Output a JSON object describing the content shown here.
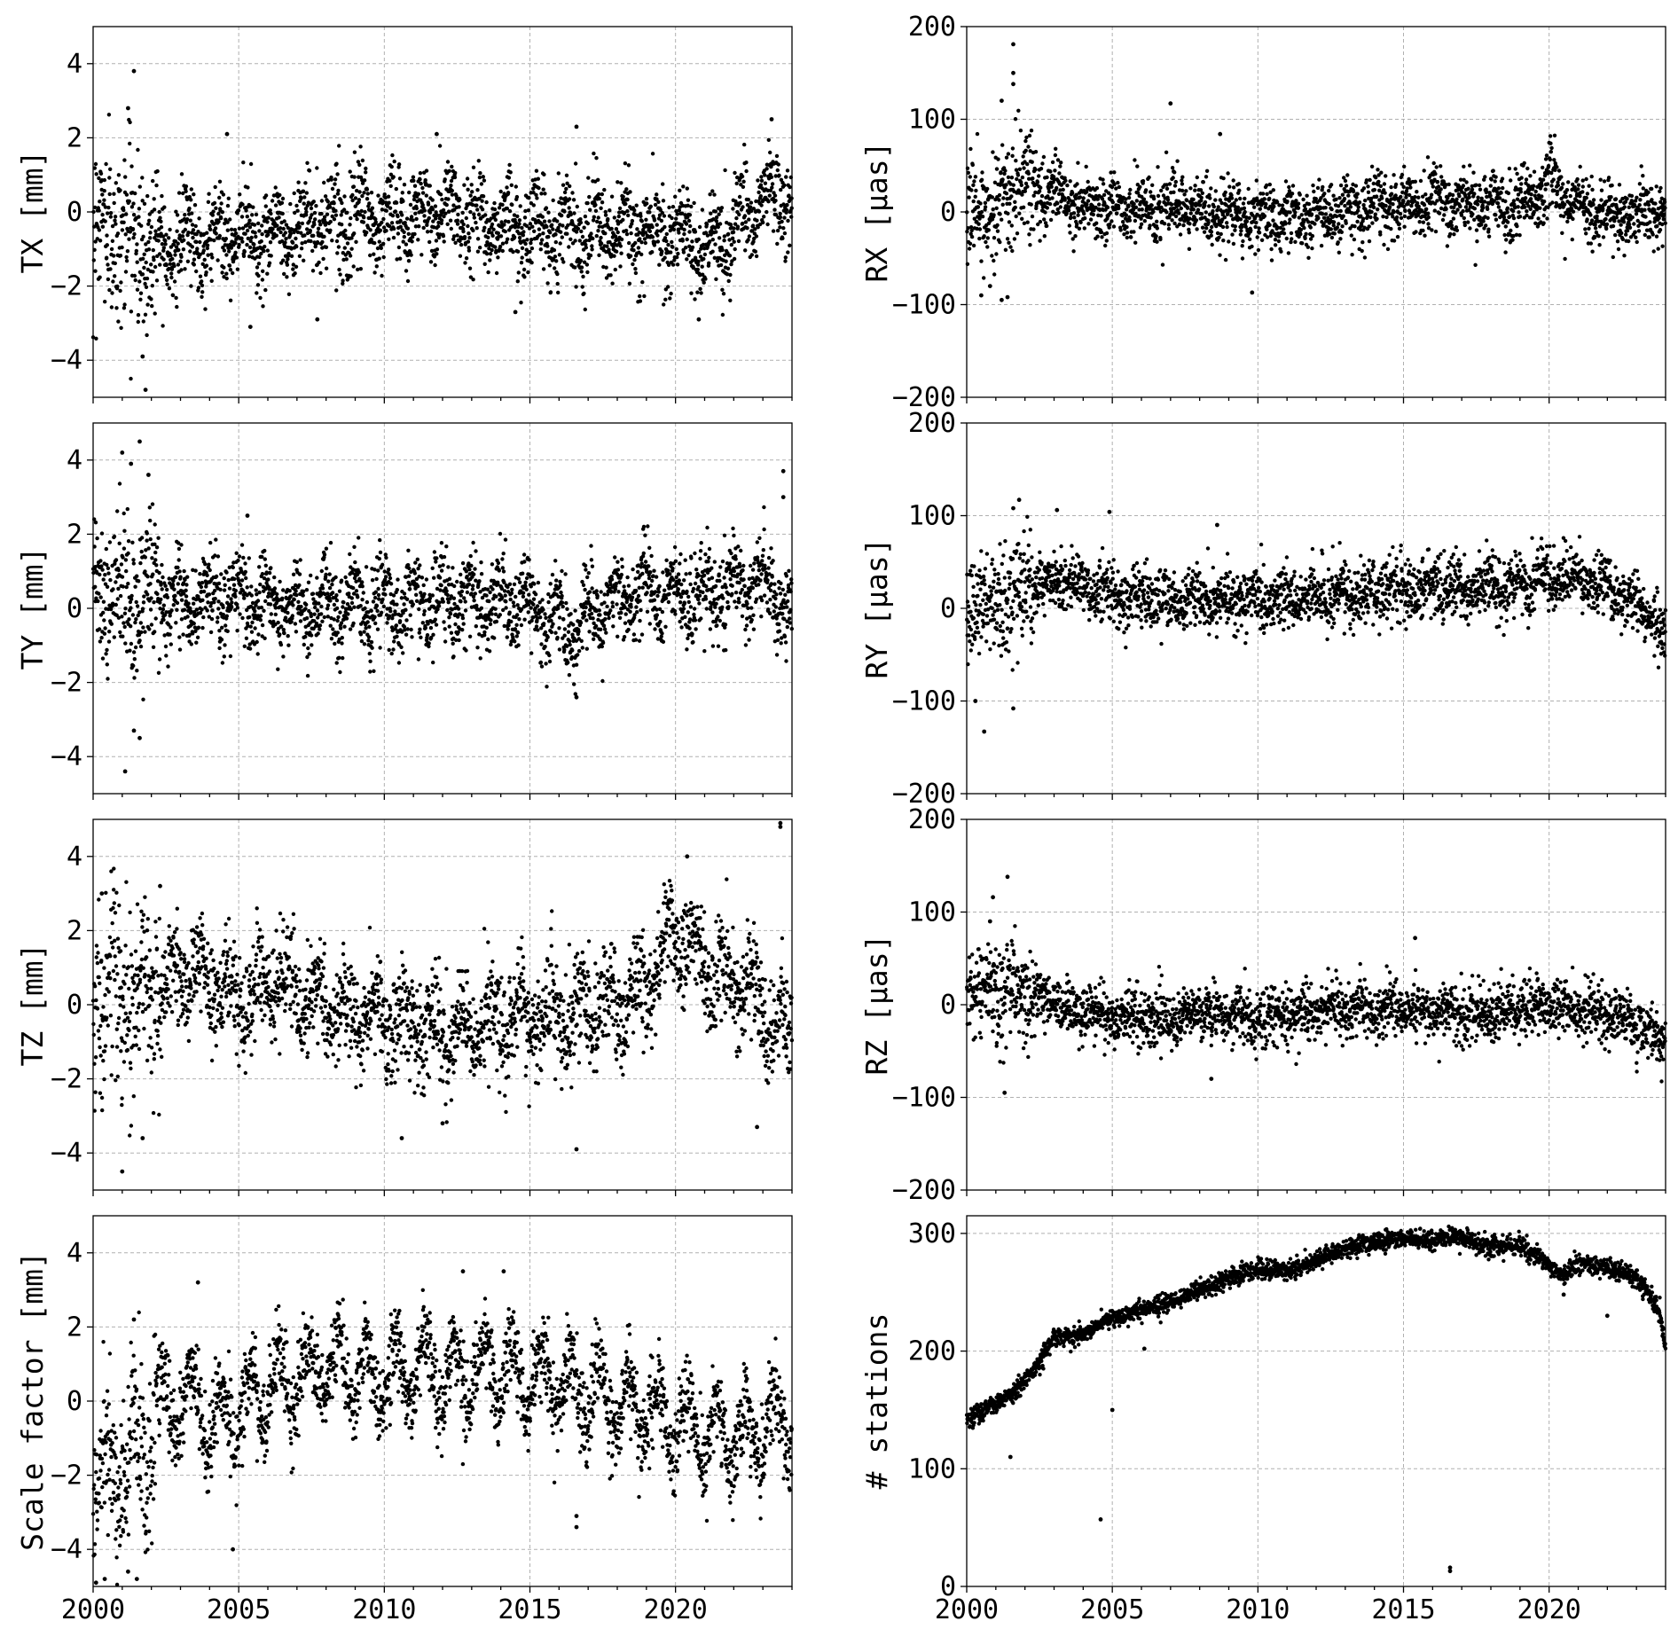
{
  "figure": {
    "x_tick_labels": [
      "2000",
      "2005",
      "2010",
      "2015",
      "2020"
    ]
  },
  "colors": {
    "marker": "#000000",
    "grid": "#b0b0b0",
    "axes": "#000000",
    "background": "#ffffff"
  },
  "chart_data": [
    {
      "id": "tx",
      "type": "scatter",
      "ylabel": "TX [mm]",
      "xlim": [
        2000,
        2024
      ],
      "ylim": [
        -5,
        5
      ],
      "x_ticks": [
        2000,
        2005,
        2010,
        2015,
        2020
      ],
      "y_ticks": [
        -4,
        -2,
        0,
        2,
        4
      ],
      "y_tick_labels": [
        "−4",
        "−2",
        "0",
        "2",
        "4"
      ],
      "grid": true,
      "x_tick_labels_visible": false,
      "trend": [
        [
          2000,
          -0.4
        ],
        [
          2001,
          -0.5
        ],
        [
          2002,
          -0.9
        ],
        [
          2003,
          -0.8
        ],
        [
          2004,
          -0.7
        ],
        [
          2005,
          -0.6
        ],
        [
          2006,
          -0.6
        ],
        [
          2007,
          -0.4
        ],
        [
          2008,
          -0.2
        ],
        [
          2009,
          -0.2
        ],
        [
          2010,
          -0.2
        ],
        [
          2011,
          -0.1
        ],
        [
          2012,
          0.0
        ],
        [
          2013,
          -0.1
        ],
        [
          2014,
          -0.3
        ],
        [
          2015,
          -0.4
        ],
        [
          2016,
          -0.4
        ],
        [
          2017,
          -0.4
        ],
        [
          2018,
          -0.6
        ],
        [
          2019,
          -0.5
        ],
        [
          2020,
          -0.5
        ],
        [
          2021,
          -1.0
        ],
        [
          2022,
          -0.5
        ],
        [
          2023,
          0.3
        ],
        [
          2024,
          0.4
        ]
      ],
      "noise_sd": 0.6,
      "annual_amp": 0.5,
      "point_count": 2400,
      "outliers": [
        [
          2001.4,
          3.8
        ],
        [
          2001.8,
          -4.8
        ],
        [
          2001.2,
          2.8
        ],
        [
          2001.7,
          -3.9
        ],
        [
          2004.6,
          2.1
        ],
        [
          2005.4,
          -3.1
        ],
        [
          2011.8,
          2.1
        ],
        [
          2014.5,
          -2.7
        ],
        [
          2016.6,
          2.3
        ],
        [
          2020.8,
          -2.9
        ],
        [
          2023.3,
          2.5
        ],
        [
          2007.7,
          -2.9
        ]
      ]
    },
    {
      "id": "rx",
      "type": "scatter",
      "ylabel": "RX [µas]",
      "xlim": [
        2000,
        2024
      ],
      "ylim": [
        -200,
        200
      ],
      "x_ticks": [
        2000,
        2005,
        2010,
        2015,
        2020
      ],
      "y_ticks": [
        -200,
        -100,
        0,
        100,
        200
      ],
      "y_tick_labels": [
        "−200",
        "−100",
        "0",
        "100",
        "200"
      ],
      "grid": true,
      "x_tick_labels_visible": false,
      "trend": [
        [
          2000,
          -10
        ],
        [
          2001,
          10
        ],
        [
          2002,
          30
        ],
        [
          2003,
          20
        ],
        [
          2004,
          5
        ],
        [
          2006,
          5
        ],
        [
          2008,
          0
        ],
        [
          2010,
          -5
        ],
        [
          2012,
          -5
        ],
        [
          2014,
          5
        ],
        [
          2016,
          10
        ],
        [
          2018,
          5
        ],
        [
          2019.5,
          10
        ],
        [
          2020,
          40
        ],
        [
          2020.6,
          10
        ],
        [
          2022,
          0
        ],
        [
          2024,
          -5
        ]
      ],
      "noise_sd": 17,
      "annual_amp": 8,
      "point_count": 2400,
      "outliers": [
        [
          2001.6,
          181
        ],
        [
          2001.6,
          150
        ],
        [
          2001.6,
          138
        ],
        [
          2001.2,
          120
        ],
        [
          2007.0,
          117
        ],
        [
          2008.7,
          84
        ],
        [
          2001.2,
          -95
        ],
        [
          2001.4,
          -92
        ],
        [
          2009.8,
          -87
        ],
        [
          2000.5,
          -90
        ],
        [
          2000.8,
          -80
        ]
      ]
    },
    {
      "id": "ty",
      "type": "scatter",
      "ylabel": "TY [mm]",
      "xlim": [
        2000,
        2024
      ],
      "ylim": [
        -5,
        5
      ],
      "x_ticks": [
        2000,
        2005,
        2010,
        2015,
        2020
      ],
      "y_ticks": [
        -4,
        -2,
        0,
        2,
        4
      ],
      "y_tick_labels": [
        "−4",
        "−2",
        "0",
        "2",
        "4"
      ],
      "grid": true,
      "x_tick_labels_visible": false,
      "trend": [
        [
          2000,
          0.3
        ],
        [
          2001,
          0.2
        ],
        [
          2002,
          0.5
        ],
        [
          2003,
          0.1
        ],
        [
          2005,
          0.3
        ],
        [
          2007,
          0.0
        ],
        [
          2009,
          0.2
        ],
        [
          2011,
          0.1
        ],
        [
          2013,
          0.3
        ],
        [
          2015,
          0.1
        ],
        [
          2016.5,
          -0.5
        ],
        [
          2018,
          0.3
        ],
        [
          2019,
          0.5
        ],
        [
          2021,
          0.3
        ],
        [
          2022,
          0.6
        ],
        [
          2023,
          0.7
        ],
        [
          2024,
          -0.3
        ]
      ],
      "noise_sd": 0.55,
      "annual_amp": 0.5,
      "point_count": 2400,
      "outliers": [
        [
          2001.0,
          4.2
        ],
        [
          2001.6,
          4.5
        ],
        [
          2001.3,
          3.9
        ],
        [
          2001.9,
          3.6
        ],
        [
          2001.1,
          -4.4
        ],
        [
          2001.6,
          -3.5
        ],
        [
          2001.4,
          -3.3
        ],
        [
          2005.3,
          2.5
        ],
        [
          2016.6,
          -2.4
        ],
        [
          2023.7,
          3.7
        ],
        [
          2023.7,
          3.0
        ]
      ]
    },
    {
      "id": "ry",
      "type": "scatter",
      "ylabel": "RY [µas]",
      "xlim": [
        2000,
        2024
      ],
      "ylim": [
        -200,
        200
      ],
      "x_ticks": [
        2000,
        2005,
        2010,
        2015,
        2020
      ],
      "y_ticks": [
        -200,
        -100,
        0,
        100,
        200
      ],
      "y_tick_labels": [
        "−200",
        "−100",
        "0",
        "100",
        "200"
      ],
      "grid": true,
      "x_tick_labels_visible": false,
      "trend": [
        [
          2000,
          0
        ],
        [
          2001,
          5
        ],
        [
          2002,
          20
        ],
        [
          2003,
          30
        ],
        [
          2005,
          15
        ],
        [
          2007,
          10
        ],
        [
          2009,
          10
        ],
        [
          2011,
          10
        ],
        [
          2013,
          15
        ],
        [
          2015,
          20
        ],
        [
          2017,
          20
        ],
        [
          2019,
          25
        ],
        [
          2020,
          35
        ],
        [
          2021.5,
          30
        ],
        [
          2022.5,
          15
        ],
        [
          2023.3,
          0
        ],
        [
          2024,
          -30
        ]
      ],
      "noise_sd": 16,
      "annual_amp": 6,
      "point_count": 2400,
      "outliers": [
        [
          2001.8,
          117
        ],
        [
          2001.6,
          108
        ],
        [
          2003.1,
          106
        ],
        [
          2004.9,
          104
        ],
        [
          2008.6,
          90
        ],
        [
          2000.6,
          -133
        ],
        [
          2001.6,
          -108
        ],
        [
          2000.3,
          -100
        ]
      ]
    },
    {
      "id": "tz",
      "type": "scatter",
      "ylabel": "TZ [mm]",
      "xlim": [
        2000,
        2024
      ],
      "ylim": [
        -5,
        5
      ],
      "x_ticks": [
        2000,
        2005,
        2010,
        2015,
        2020
      ],
      "y_ticks": [
        -4,
        -2,
        0,
        2,
        4
      ],
      "y_tick_labels": [
        "−4",
        "−2",
        "0",
        "2",
        "4"
      ],
      "grid": true,
      "x_tick_labels_visible": false,
      "trend": [
        [
          2000,
          0.3
        ],
        [
          2002,
          0.4
        ],
        [
          2003.5,
          0.8
        ],
        [
          2005,
          0.3
        ],
        [
          2006.5,
          0.5
        ],
        [
          2008,
          0.0
        ],
        [
          2010,
          -0.4
        ],
        [
          2011,
          -0.6
        ],
        [
          2013,
          -0.8
        ],
        [
          2014,
          -0.5
        ],
        [
          2016,
          -0.2
        ],
        [
          2018,
          0.0
        ],
        [
          2019,
          0.4
        ],
        [
          2020,
          2.0
        ],
        [
          2020.6,
          1.5
        ],
        [
          2021.5,
          0.6
        ],
        [
          2022.5,
          0.5
        ],
        [
          2023.3,
          -0.5
        ],
        [
          2024,
          -0.6
        ]
      ],
      "noise_sd": 0.7,
      "annual_amp": 0.6,
      "point_count": 2400,
      "outliers": [
        [
          2000.3,
          3.0
        ],
        [
          2002.3,
          3.2
        ],
        [
          2020.4,
          4.0
        ],
        [
          2023.6,
          4.9
        ],
        [
          2023.6,
          4.8
        ],
        [
          2001.0,
          -4.5
        ],
        [
          2001.7,
          -3.6
        ],
        [
          2010.6,
          -3.6
        ],
        [
          2016.6,
          -3.9
        ],
        [
          2012.0,
          -3.2
        ],
        [
          2022.8,
          -3.3
        ]
      ]
    },
    {
      "id": "rz",
      "type": "scatter",
      "ylabel": "RZ [µas]",
      "xlim": [
        2000,
        2024
      ],
      "ylim": [
        -200,
        200
      ],
      "x_ticks": [
        2000,
        2005,
        2010,
        2015,
        2020
      ],
      "y_ticks": [
        -200,
        -100,
        0,
        100,
        200
      ],
      "y_tick_labels": [
        "−200",
        "−100",
        "0",
        "100",
        "200"
      ],
      "grid": true,
      "x_tick_labels_visible": false,
      "trend": [
        [
          2000,
          10
        ],
        [
          2001,
          20
        ],
        [
          2002,
          10
        ],
        [
          2003,
          0
        ],
        [
          2005,
          -15
        ],
        [
          2007,
          -15
        ],
        [
          2009,
          -10
        ],
        [
          2011,
          -10
        ],
        [
          2013,
          -5
        ],
        [
          2015,
          -5
        ],
        [
          2017,
          -10
        ],
        [
          2019,
          -5
        ],
        [
          2021,
          -5
        ],
        [
          2022.5,
          -15
        ],
        [
          2024,
          -40
        ]
      ],
      "noise_sd": 15,
      "annual_amp": 5,
      "point_count": 2400,
      "outliers": [
        [
          2001.4,
          138
        ],
        [
          2000.9,
          116
        ],
        [
          2000.8,
          90
        ],
        [
          2015.4,
          72
        ],
        [
          2001.3,
          -95
        ],
        [
          2008.4,
          -80
        ]
      ]
    },
    {
      "id": "scale",
      "type": "scatter",
      "ylabel": "Scale factor [mm]",
      "xlim": [
        2000,
        2024
      ],
      "ylim": [
        -5,
        5
      ],
      "x_ticks": [
        2000,
        2005,
        2010,
        2015,
        2020
      ],
      "y_ticks": [
        -4,
        -2,
        0,
        2,
        4
      ],
      "y_tick_labels": [
        "−4",
        "−2",
        "0",
        "2",
        "4"
      ],
      "grid": true,
      "x_tick_labels_visible": true,
      "trend": [
        [
          2000,
          -2.5
        ],
        [
          2001,
          -1.8
        ],
        [
          2002,
          -0.8
        ],
        [
          2003,
          0.2
        ],
        [
          2004,
          -0.6
        ],
        [
          2005,
          -0.3
        ],
        [
          2006,
          0.3
        ],
        [
          2008,
          1.0
        ],
        [
          2010,
          0.6
        ],
        [
          2012,
          0.8
        ],
        [
          2014,
          0.8
        ],
        [
          2016,
          0.5
        ],
        [
          2018,
          0.0
        ],
        [
          2019,
          -0.3
        ],
        [
          2020,
          -0.6
        ],
        [
          2022,
          -1.0
        ],
        [
          2023,
          -0.9
        ],
        [
          2024,
          -0.4
        ]
      ],
      "noise_sd": 0.6,
      "annual_amp": 0.9,
      "point_count": 2400,
      "outliers": [
        [
          2000.1,
          -4.9
        ],
        [
          2000.4,
          -4.8
        ],
        [
          2001.5,
          -4.8
        ],
        [
          2001.2,
          -4.6
        ],
        [
          2003.6,
          3.2
        ],
        [
          2004.8,
          -4.0
        ],
        [
          2012.7,
          3.5
        ],
        [
          2014.1,
          3.5
        ],
        [
          2016.6,
          -3.4
        ],
        [
          2016.6,
          -3.1
        ],
        [
          2001.4,
          2.2
        ]
      ]
    },
    {
      "id": "stations",
      "type": "scatter",
      "ylabel": "# stations",
      "xlim": [
        2000,
        2024
      ],
      "ylim": [
        0,
        315
      ],
      "x_ticks": [
        2000,
        2005,
        2010,
        2015,
        2020
      ],
      "y_ticks": [
        0,
        100,
        200,
        300
      ],
      "y_tick_labels": [
        "0",
        "100",
        "200",
        "300"
      ],
      "grid": true,
      "x_tick_labels_visible": true,
      "trend": [
        [
          2000,
          142
        ],
        [
          2001,
          155
        ],
        [
          2001.7,
          168
        ],
        [
          2002.5,
          190
        ],
        [
          2003,
          212
        ],
        [
          2004,
          215
        ],
        [
          2005,
          228
        ],
        [
          2006,
          235
        ],
        [
          2007,
          242
        ],
        [
          2008,
          252
        ],
        [
          2009,
          262
        ],
        [
          2010,
          270
        ],
        [
          2011,
          268
        ],
        [
          2012,
          277
        ],
        [
          2013,
          288
        ],
        [
          2014,
          293
        ],
        [
          2015,
          296
        ],
        [
          2016,
          294
        ],
        [
          2017,
          297
        ],
        [
          2018,
          287
        ],
        [
          2019,
          290
        ],
        [
          2019.8,
          276
        ],
        [
          2020.5,
          265
        ],
        [
          2021,
          274
        ],
        [
          2022,
          270
        ],
        [
          2023,
          262
        ],
        [
          2023.8,
          235
        ],
        [
          2024,
          198
        ]
      ],
      "noise_sd": 4,
      "annual_amp": 0,
      "point_count": 2400,
      "outliers": [
        [
          2004.6,
          57
        ],
        [
          2005.0,
          150
        ],
        [
          2006.1,
          202
        ],
        [
          2016.6,
          16
        ],
        [
          2016.6,
          13
        ],
        [
          2001.5,
          110
        ],
        [
          2020.5,
          248
        ],
        [
          2022.0,
          230
        ]
      ]
    }
  ]
}
